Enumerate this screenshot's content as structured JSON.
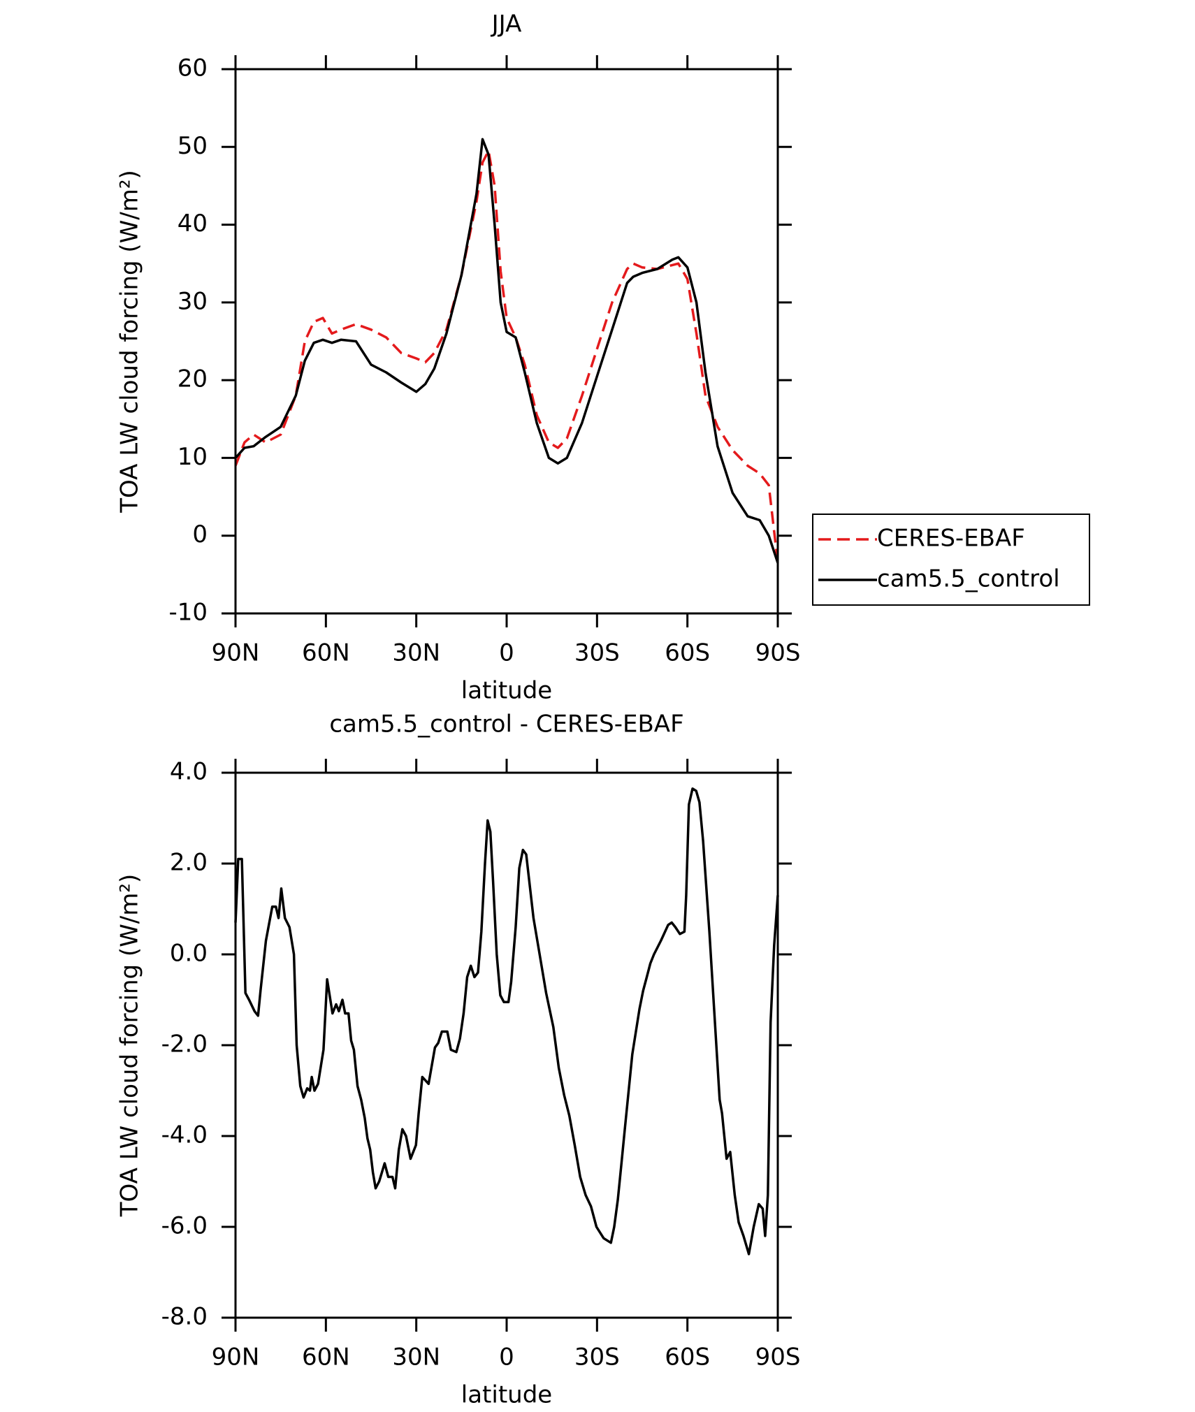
{
  "chart_data": [
    {
      "type": "line",
      "title": "JJA",
      "xlabel": "latitude",
      "ylabel": "TOA LW cloud forcing (W/m²)",
      "xlim": [
        90,
        -90
      ],
      "xticks": [
        {
          "value": 90,
          "label": "90N"
        },
        {
          "value": 60,
          "label": "60N"
        },
        {
          "value": 30,
          "label": "30N"
        },
        0,
        {
          "value": -30,
          "label": "30S"
        },
        {
          "value": -60,
          "label": "60S"
        },
        {
          "value": -90,
          "label": "90S"
        }
      ],
      "ylim": [
        -10,
        60
      ],
      "yticks": [
        -10,
        0,
        10,
        20,
        30,
        40,
        50,
        60
      ],
      "legend": "outside-right",
      "x": [
        90,
        87,
        84,
        80,
        75,
        70,
        67,
        64,
        61,
        58,
        55,
        50,
        45,
        40,
        35,
        30,
        27,
        24,
        20,
        15,
        10,
        8,
        6,
        4,
        2,
        0,
        -3,
        -6,
        -10,
        -14,
        -17,
        -20,
        -25,
        -30,
        -35,
        -40,
        -42,
        -45,
        -50,
        -55,
        -57,
        -60,
        -63,
        -66,
        -70,
        -75,
        -80,
        -84,
        -87,
        -90
      ],
      "series": [
        {
          "name": "CERES-EBAF",
          "color": "#e41a1c",
          "linestyle": "dashed",
          "values": [
            9,
            12,
            13,
            12,
            13,
            18,
            25,
            27.5,
            28,
            26,
            26.5,
            27.2,
            26.5,
            25.5,
            23.5,
            22.8,
            22.3,
            23.5,
            26.5,
            33.5,
            43,
            48,
            49.5,
            45,
            34,
            28,
            25.5,
            22,
            15.5,
            12,
            11.3,
            12.5,
            18,
            24,
            30,
            34.3,
            35,
            34.5,
            34.3,
            34.8,
            35,
            33,
            26,
            18,
            14,
            11,
            9,
            8,
            6.5,
            -3.5
          ]
        },
        {
          "name": "cam5.5_control",
          "color": "#000000",
          "linestyle": "solid",
          "values": [
            10,
            11.3,
            11.5,
            12.7,
            14,
            18,
            22.5,
            24.8,
            25.2,
            24.8,
            25.2,
            25,
            22,
            21,
            19.7,
            18.5,
            19.5,
            21.5,
            26,
            33.5,
            44,
            51,
            49,
            40,
            30,
            26.2,
            25.5,
            21,
            14.5,
            10,
            9.3,
            10,
            14.5,
            20.5,
            26.5,
            32.5,
            33.3,
            33.8,
            34.3,
            35.5,
            35.8,
            34.5,
            30,
            21,
            11.5,
            5.5,
            2.5,
            2,
            0,
            -3.5
          ]
        }
      ]
    },
    {
      "type": "line",
      "title": "cam5.5_control - CERES-EBAF",
      "xlabel": "latitude",
      "ylabel": "TOA LW cloud forcing (W/m²)",
      "xlim": [
        90,
        -90
      ],
      "xticks": [
        {
          "value": 90,
          "label": "90N"
        },
        {
          "value": 60,
          "label": "60N"
        },
        {
          "value": 30,
          "label": "30N"
        },
        0,
        {
          "value": -30,
          "label": "30S"
        },
        {
          "value": -60,
          "label": "60S"
        },
        {
          "value": -90,
          "label": "90S"
        }
      ],
      "ylim": [
        -8,
        4
      ],
      "yticks": [
        {
          "value": -8,
          "label": "-8.0"
        },
        {
          "value": -6,
          "label": "-6.0"
        },
        {
          "value": -4,
          "label": "-4.0"
        },
        {
          "value": -2,
          "label": "-2.0"
        },
        {
          "value": 0,
          "label": "0.0"
        },
        {
          "value": 2,
          "label": "2.0"
        },
        {
          "value": 4,
          "label": "4.0"
        }
      ],
      "x": [
        90,
        89.1,
        87.9,
        86.7,
        85.5,
        83.7,
        82.5,
        81.7,
        79.9,
        77.8,
        76.6,
        75.7,
        74.8,
        73.6,
        72.1,
        70.6,
        69.7,
        68.5,
        67.4,
        66.2,
        65.3,
        64.7,
        63.8,
        62.6,
        60.8,
        59.6,
        57.8,
        56.6,
        55.7,
        54.5,
        53.6,
        52.5,
        51.6,
        50.7,
        49.5,
        48.3,
        47.1,
        46.2,
        45.3,
        44.4,
        43.5,
        42.3,
        40.5,
        39.3,
        37.9,
        37,
        35.8,
        34.6,
        33.4,
        31.9,
        30.1,
        29.2,
        28,
        25.9,
        23.8,
        22.7,
        21.5,
        19.7,
        18.5,
        16.7,
        15.5,
        14.3,
        13.1,
        11.9,
        10.7,
        9.5,
        8.4,
        7.2,
        6.3,
        5.4,
        4.5,
        3.3,
        2.1,
        0.9,
        -0.6,
        -1.5,
        -3,
        -4.2,
        -5.4,
        -6.5,
        -7.7,
        -8.9,
        -10.7,
        -13.1,
        -15.5,
        -17.3,
        -19.1,
        -20.8,
        -22.6,
        -24.4,
        -26.2,
        -28,
        -29.8,
        -32.2,
        -34.6,
        -35.7,
        -36.9,
        -38.1,
        -39.3,
        -41.7,
        -44.1,
        -45.3,
        -46.5,
        -47.7,
        -48.9,
        -51.2,
        -53.6,
        -54.8,
        -56,
        -57.5,
        -59,
        -59.6,
        -60.5,
        -61.7,
        -62.9,
        -64,
        -65.2,
        -67.3,
        -70.7,
        -71.5,
        -73,
        -74.2,
        -75.7,
        -77,
        -78.6,
        -80.4,
        -82,
        -83.7,
        -85,
        -85.8,
        -86.7,
        -87.6,
        -88.8,
        -90
      ],
      "series": [
        {
          "name": "cam5.5_control - CERES-EBAF",
          "color": "#000000",
          "linestyle": "solid",
          "values": [
            0.7,
            2.1,
            2.1,
            -0.85,
            -1.0,
            -1.25,
            -1.35,
            -0.8,
            0.3,
            1.05,
            1.05,
            0.8,
            1.45,
            0.8,
            0.6,
            0.0,
            -2.0,
            -2.9,
            -3.15,
            -2.95,
            -3.0,
            -2.7,
            -3.0,
            -2.85,
            -2.1,
            -0.55,
            -1.3,
            -1.1,
            -1.25,
            -1.0,
            -1.3,
            -1.3,
            -1.9,
            -2.1,
            -2.9,
            -3.2,
            -3.6,
            -4.05,
            -4.3,
            -4.8,
            -5.15,
            -5.0,
            -4.6,
            -4.9,
            -4.9,
            -5.15,
            -4.3,
            -3.85,
            -4.0,
            -4.5,
            -4.2,
            -3.5,
            -2.7,
            -2.85,
            -2.05,
            -1.95,
            -1.7,
            -1.7,
            -2.1,
            -2.15,
            -1.85,
            -1.3,
            -0.5,
            -0.25,
            -0.5,
            -0.4,
            0.5,
            2.0,
            2.95,
            2.7,
            1.6,
            0.0,
            -0.9,
            -1.05,
            -1.05,
            -0.6,
            0.6,
            1.9,
            2.3,
            2.2,
            1.5,
            0.8,
            0.1,
            -0.85,
            -1.6,
            -2.5,
            -3.1,
            -3.55,
            -4.2,
            -4.9,
            -5.3,
            -5.55,
            -6.0,
            -6.25,
            -6.35,
            -6.0,
            -5.4,
            -4.6,
            -3.8,
            -2.2,
            -1.2,
            -0.8,
            -0.5,
            -0.2,
            0.0,
            0.3,
            0.65,
            0.7,
            0.6,
            0.45,
            0.5,
            1.3,
            3.3,
            3.65,
            3.6,
            3.35,
            2.5,
            0.5,
            -3.2,
            -3.5,
            -4.5,
            -4.35,
            -5.3,
            -5.9,
            -6.2,
            -6.6,
            -6.0,
            -5.5,
            -5.6,
            -6.2,
            -5.3,
            -1.5,
            0.2,
            1.3
          ]
        }
      ]
    }
  ]
}
